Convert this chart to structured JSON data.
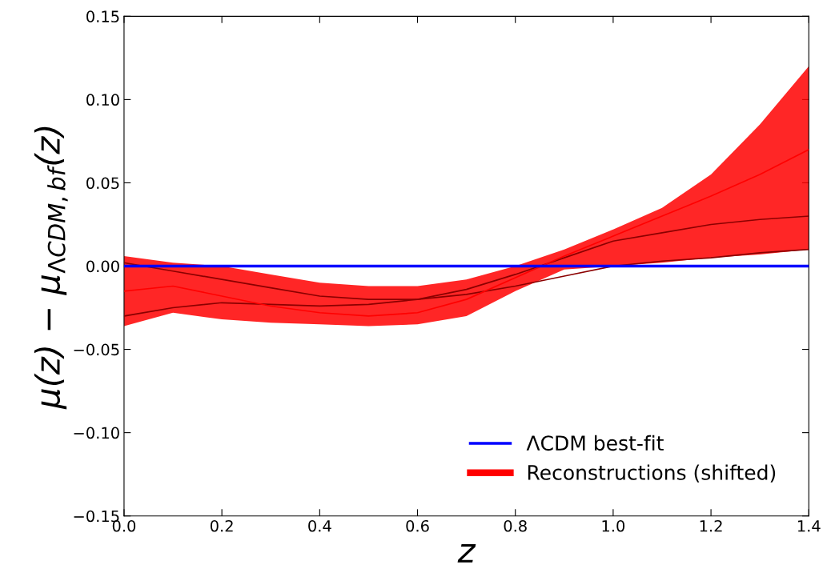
{
  "chart_data": {
    "type": "line",
    "xlabel": "z",
    "ylabel": "μ(z) − μ$_{ΛCDM,bf}$(z)",
    "xlim": [
      0.0,
      1.4
    ],
    "ylim": [
      -0.15,
      0.15
    ],
    "xticks": [
      {
        "value": 0.0,
        "label": "0.0"
      },
      {
        "value": 0.2,
        "label": "0.2"
      },
      {
        "value": 0.4,
        "label": "0.4"
      },
      {
        "value": 0.6,
        "label": "0.6"
      },
      {
        "value": 0.8,
        "label": "0.8"
      },
      {
        "value": 1.0,
        "label": "1.0"
      },
      {
        "value": 1.2,
        "label": "1.2"
      },
      {
        "value": 1.4,
        "label": "1.4"
      }
    ],
    "yticks": [
      {
        "value": -0.15,
        "label": "−0.15"
      },
      {
        "value": -0.1,
        "label": "−0.10"
      },
      {
        "value": -0.05,
        "label": "−0.05"
      },
      {
        "value": 0.0,
        "label": "0.00"
      },
      {
        "value": 0.05,
        "label": "0.05"
      },
      {
        "value": 0.1,
        "label": "0.10"
      },
      {
        "value": 0.15,
        "label": "0.15"
      }
    ],
    "x": [
      0.0,
      0.1,
      0.2,
      0.3,
      0.4,
      0.5,
      0.6,
      0.7,
      0.8,
      0.9,
      1.0,
      1.1,
      1.2,
      1.3,
      1.4
    ],
    "grid": false,
    "legend": "bottom right",
    "series": [
      {
        "color": "#8b0000",
        "values": [
          0.002,
          -0.003,
          -0.008,
          -0.013,
          -0.018,
          -0.02,
          -0.02,
          -0.017,
          -0.012,
          -0.006,
          0.0,
          0.003,
          0.005,
          0.008,
          0.01
        ]
      },
      {
        "color": "#8b0000",
        "values": [
          -0.03,
          -0.025,
          -0.022,
          -0.023,
          -0.024,
          -0.023,
          -0.02,
          -0.014,
          -0.005,
          0.005,
          0.015,
          0.02,
          0.025,
          0.028,
          0.03
        ]
      },
      {
        "name": "Reconstructions (shifted)",
        "color": "#ff0000",
        "values": [
          -0.015,
          -0.012,
          -0.018,
          -0.024,
          -0.028,
          -0.03,
          -0.028,
          -0.02,
          -0.007,
          0.006,
          0.018,
          0.03,
          0.042,
          0.055,
          0.07
        ],
        "lower": [
          -0.036,
          -0.028,
          -0.032,
          -0.034,
          -0.035,
          -0.036,
          -0.035,
          -0.03,
          -0.015,
          -0.002,
          0.0,
          0.002,
          0.005,
          0.007,
          0.01
        ],
        "upper": [
          0.006,
          0.002,
          0.0,
          -0.005,
          -0.01,
          -0.012,
          -0.012,
          -0.008,
          0.0,
          0.01,
          0.022,
          0.035,
          0.055,
          0.085,
          0.12
        ]
      },
      {
        "name": "ΛCDM best-fit",
        "color": "#0000ff",
        "values": [
          0,
          0,
          0,
          0,
          0,
          0,
          0,
          0,
          0,
          0,
          0,
          0,
          0,
          0,
          0
        ]
      }
    ]
  }
}
